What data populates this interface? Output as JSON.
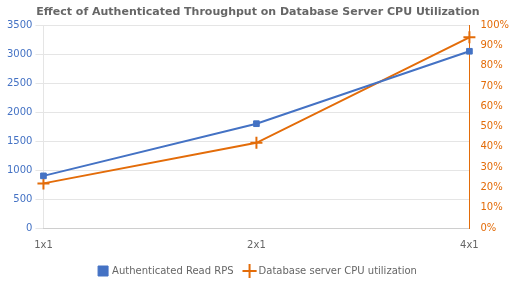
{
  "chart_data": {
    "type": "line",
    "title": "Effect of Authenticated Throughput on Database Server CPU Utilization",
    "categories": [
      "1x1",
      "2x1",
      "4x1"
    ],
    "series": [
      {
        "name": "Authenticated Read RPS",
        "color": "#4472C4",
        "marker": "square",
        "axis": "y",
        "values": [
          900,
          1800,
          3050
        ]
      },
      {
        "name": "Database server CPU utilization",
        "color": "#E36C09",
        "marker": "plus",
        "axis": "y2",
        "values": [
          0.22,
          0.42,
          0.94
        ]
      }
    ],
    "ylim": [
      0,
      3500
    ],
    "yticks": [
      0,
      500,
      1000,
      1500,
      2000,
      2500,
      3000,
      3500
    ],
    "y2lim": [
      0,
      1.0
    ],
    "y2ticks": [
      {
        "value": 0.0,
        "label": "0%"
      },
      {
        "value": 0.1,
        "label": "10%"
      },
      {
        "value": 0.2,
        "label": "20%"
      },
      {
        "value": 0.3,
        "label": "30%"
      },
      {
        "value": 0.4,
        "label": "40%"
      },
      {
        "value": 0.5,
        "label": "50%"
      },
      {
        "value": 0.6,
        "label": "60%"
      },
      {
        "value": 0.7,
        "label": "70%"
      },
      {
        "value": 0.8,
        "label": "80%"
      },
      {
        "value": 0.9,
        "label": "90%"
      },
      {
        "value": 1.0,
        "label": "100%"
      }
    ],
    "grid": true,
    "legend": "bottom"
  }
}
